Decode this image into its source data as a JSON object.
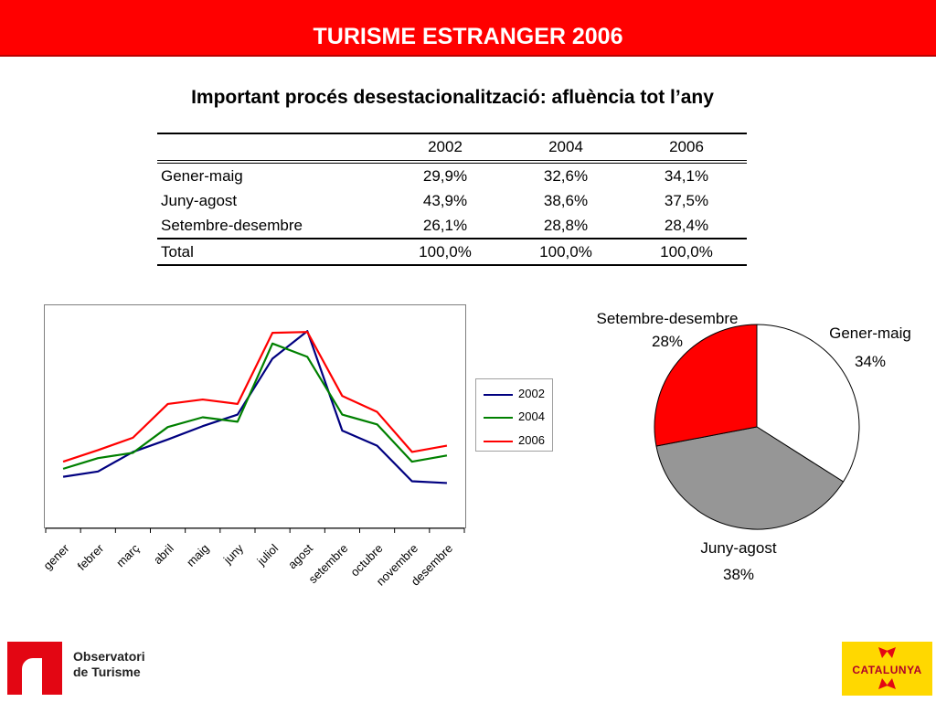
{
  "header": {
    "title": "TURISME ESTRANGER 2006"
  },
  "subtitle": "Important procés desestacionalització: afluència tot l’any",
  "table": {
    "columns": [
      "",
      "2002",
      "2004",
      "2006"
    ],
    "rows": [
      [
        "Gener-maig",
        "29,9%",
        "32,6%",
        "34,1%"
      ],
      [
        "Juny-agost",
        "43,9%",
        "38,6%",
        "37,5%"
      ],
      [
        "Setembre-desembre",
        "26,1%",
        "28,8%",
        "28,4%"
      ]
    ],
    "total": [
      "Total",
      "100,0%",
      "100,0%",
      "100,0%"
    ]
  },
  "chart_data": [
    {
      "type": "line",
      "categories": [
        "gener",
        "febrer",
        "març",
        "abril",
        "maig",
        "juny",
        "juliol",
        "agost",
        "setembre",
        "octubre",
        "novembre",
        "desembre"
      ],
      "series": [
        {
          "name": "2002",
          "color": "#000080",
          "values": [
            5.8,
            6.4,
            8.6,
            10.0,
            11.5,
            12.8,
            19.1,
            22.2,
            11.0,
            9.3,
            5.3,
            5.1
          ]
        },
        {
          "name": "2004",
          "color": "#008000",
          "values": [
            6.7,
            7.9,
            8.5,
            11.4,
            12.5,
            12.0,
            20.8,
            19.3,
            12.8,
            11.7,
            7.5,
            8.2
          ]
        },
        {
          "name": "2006",
          "color": "#ff0000",
          "values": [
            7.5,
            8.8,
            10.2,
            14.0,
            14.5,
            14.0,
            22.0,
            22.1,
            14.9,
            13.1,
            8.6,
            9.3
          ]
        }
      ],
      "legend_position": "right",
      "grid": false
    },
    {
      "type": "pie",
      "slices": [
        {
          "label": "Gener-maig",
          "value": 34,
          "display": "34%",
          "color": "#ffffff"
        },
        {
          "label": "Juny-agost",
          "value": 38,
          "display": "38%",
          "color": "#969696"
        },
        {
          "label": "Setembre-desembre",
          "value": 28,
          "display": "28%",
          "color": "#ff0000"
        }
      ]
    }
  ],
  "logos": {
    "left_line1": "Observatori",
    "left_line2": "de Turisme",
    "right_word": "CATALUNYA",
    "right_colors": [
      "#ffd800",
      "#e30613"
    ]
  }
}
